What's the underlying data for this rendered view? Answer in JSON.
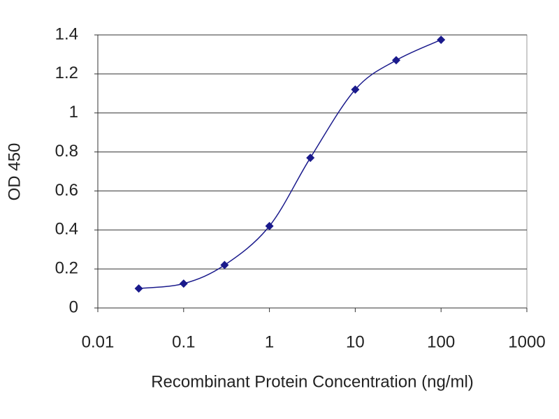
{
  "chart_data": {
    "type": "line",
    "xlabel": "Recombinant Protein Concentration (ng/ml)",
    "ylabel": "OD 450",
    "x": [
      0.03,
      0.1,
      0.3,
      1,
      3,
      10,
      30,
      100
    ],
    "values": [
      0.1,
      0.125,
      0.22,
      0.42,
      0.77,
      1.12,
      1.27,
      1.375
    ],
    "color": "#1a1a8c",
    "x_scale": "log",
    "xlim": [
      0.01,
      1000
    ],
    "xticks": [
      0.01,
      0.1,
      1,
      10,
      100,
      1000
    ],
    "ylim": [
      0,
      1.4
    ],
    "yticks": [
      0,
      0.2,
      0.4,
      0.6,
      0.8,
      1,
      1.2,
      1.4
    ],
    "grid": true,
    "smooth": true
  }
}
